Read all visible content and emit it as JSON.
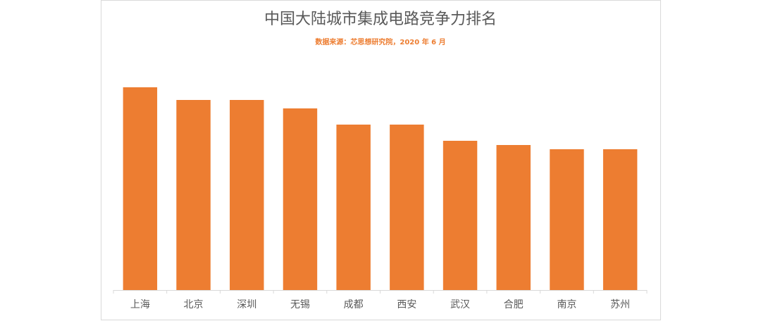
{
  "chart_data": {
    "type": "bar",
    "title": "中国大陆城市集成电路竞争力排名",
    "subtitle": "数据来源：芯思想研究院，2020 年 6 月",
    "categories": [
      "上海",
      "北京",
      "深圳",
      "无锡",
      "成都",
      "西安",
      "武汉",
      "合肥",
      "南京",
      "苏州"
    ],
    "values": [
      288,
      270,
      270,
      258,
      235,
      235,
      212,
      206,
      200,
      200
    ],
    "color": "#ed7d31",
    "ylim": [
      0,
      320
    ]
  }
}
